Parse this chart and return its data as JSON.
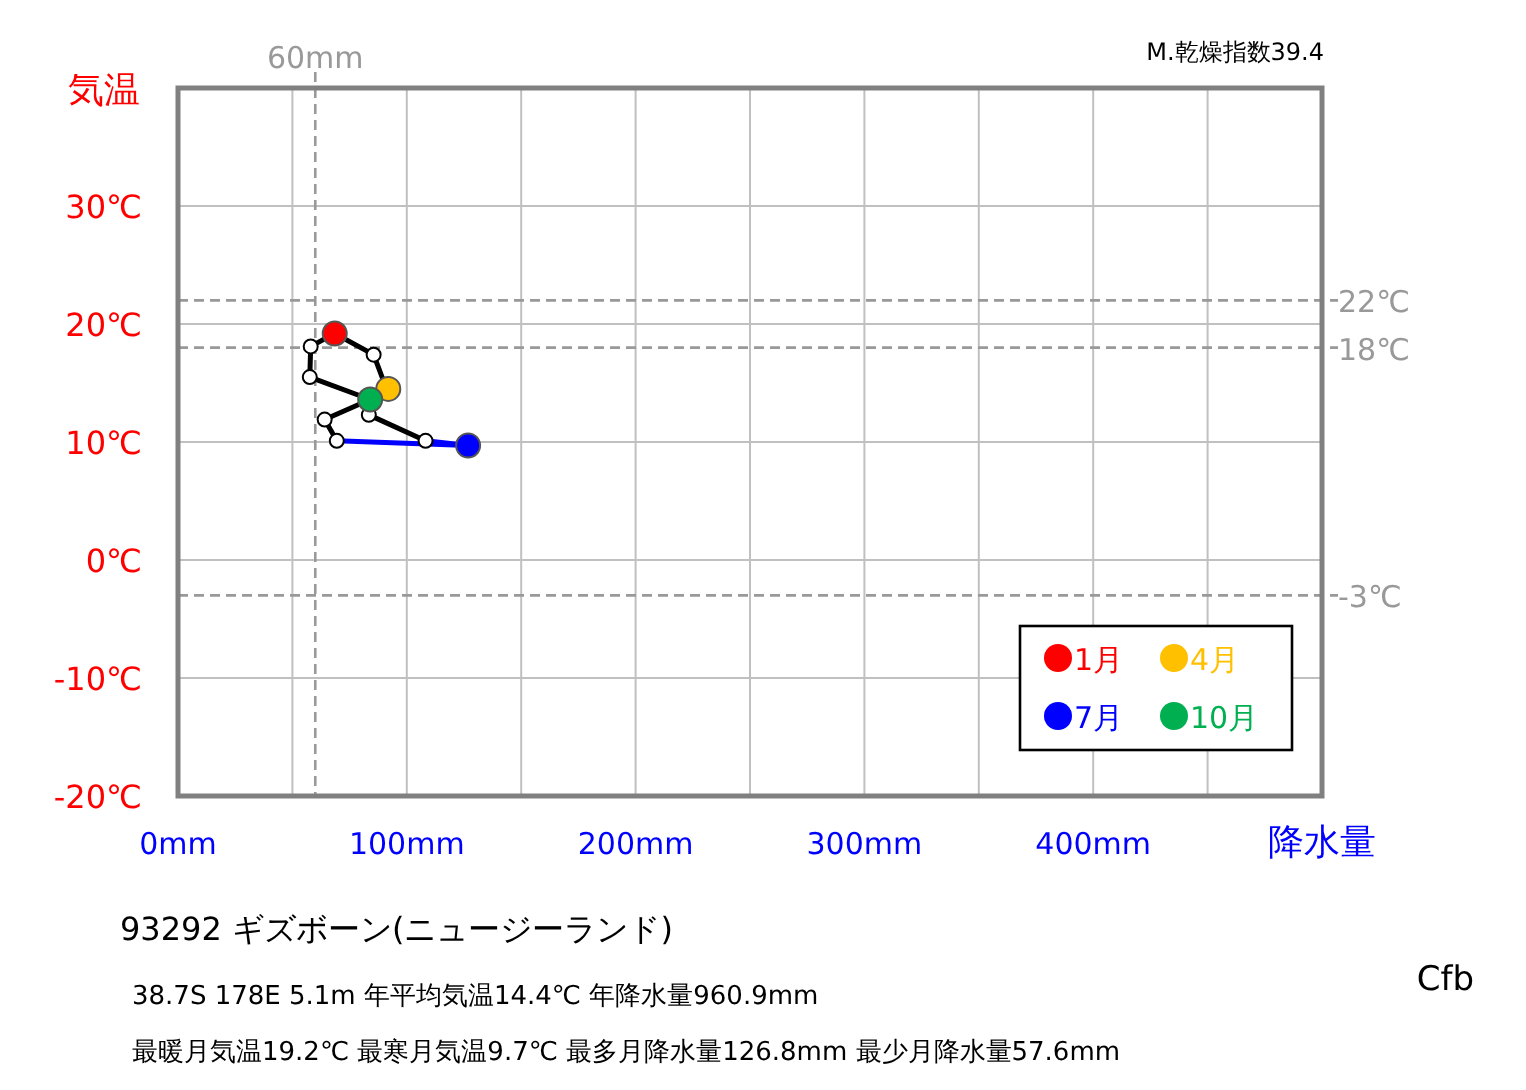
{
  "chart_data": {
    "type": "line",
    "xlabel": "降水量",
    "ylabel": "気温",
    "xlim": [
      0,
      500
    ],
    "ylim": [
      -20,
      40
    ],
    "xticks": [
      {
        "value": 0,
        "label": "0mm"
      },
      {
        "value": 50,
        "label": null
      },
      {
        "value": 100,
        "label": "100mm"
      },
      {
        "value": 150,
        "label": null
      },
      {
        "value": 200,
        "label": "200mm"
      },
      {
        "value": 250,
        "label": null
      },
      {
        "value": 300,
        "label": "300mm"
      },
      {
        "value": 350,
        "label": null
      },
      {
        "value": 400,
        "label": "400mm"
      },
      {
        "value": 450,
        "label": null
      },
      {
        "value": 500,
        "label": null
      }
    ],
    "yticks": [
      {
        "value": -20,
        "label": "-20℃"
      },
      {
        "value": -10,
        "label": "-10℃"
      },
      {
        "value": 0,
        "label": "0℃"
      },
      {
        "value": 10,
        "label": "10℃"
      },
      {
        "value": 20,
        "label": "20℃"
      },
      {
        "value": 30,
        "label": "30℃"
      },
      {
        "value": 40,
        "label": null
      }
    ],
    "grid": true,
    "legend": "bottom right",
    "marker": "circle",
    "series": [
      {
        "type": "line",
        "marker": "none",
        "color": "#000000",
        "x": [
          69.4,
          64.1,
          84.0,
          57.6,
          58.0,
          68.5,
          85.5,
          89.2,
          91.9,
          83.4,
          108.2
        ],
        "values": [
          10.1,
          11.9,
          13.6,
          15.5,
          18.1,
          19.2,
          17.4,
          15.5,
          14.5,
          12.3,
          10.1
        ]
      },
      {
        "type": "line",
        "marker": "none",
        "color": "#0000ff",
        "x": [
          108.2,
          126.8,
          69.4
        ],
        "values": [
          10.1,
          9.7,
          10.1
        ]
      },
      {
        "type": "scatter",
        "color": "#ffffff",
        "x": [
          85.5,
          83.4,
          108.2,
          69.4,
          64.1,
          57.6,
          58.0
        ],
        "values": [
          17.4,
          12.3,
          10.1,
          10.1,
          11.9,
          15.5,
          18.1
        ]
      },
      {
        "type": "scatter",
        "name": "1月",
        "color": "#ff0000",
        "x": [
          68.5
        ],
        "values": [
          19.2
        ]
      },
      {
        "type": "scatter",
        "name": "4月",
        "color": "#ffc000",
        "x": [
          91.9
        ],
        "values": [
          14.5
        ]
      },
      {
        "type": "scatter",
        "name": "7月",
        "color": "#0000ff",
        "x": [
          126.8
        ],
        "values": [
          9.7
        ]
      },
      {
        "type": "scatter",
        "name": "10月",
        "color": "#00b050",
        "x": [
          84.0
        ],
        "values": [
          13.6
        ]
      }
    ],
    "ref_lines": [
      {
        "axis": "y",
        "value": 22,
        "label": "22℃",
        "color": "#999999",
        "line_style": "dashed"
      },
      {
        "axis": "y",
        "value": 18,
        "label": "18℃",
        "color": "#999999",
        "line_style": "dashed"
      },
      {
        "axis": "y",
        "value": -3,
        "label": "-3℃",
        "color": "#999999",
        "line_style": "dashed"
      },
      {
        "axis": "x",
        "value": 60,
        "label": "60mm",
        "color": "#999999",
        "line_style": "dashed"
      }
    ],
    "annotations": [
      "M.乾燥指数39.4",
      "93292  ギズボーン(ニュージーランド)",
      "38.7S  178E 5.1m  年平均気温14.4℃ 年降水量960.9mm",
      "最暖月気温19.2℃ 最寒月気温9.7℃ 最多月降水量126.8mm 最少月降水量57.6mm",
      "Cfb"
    ]
  }
}
